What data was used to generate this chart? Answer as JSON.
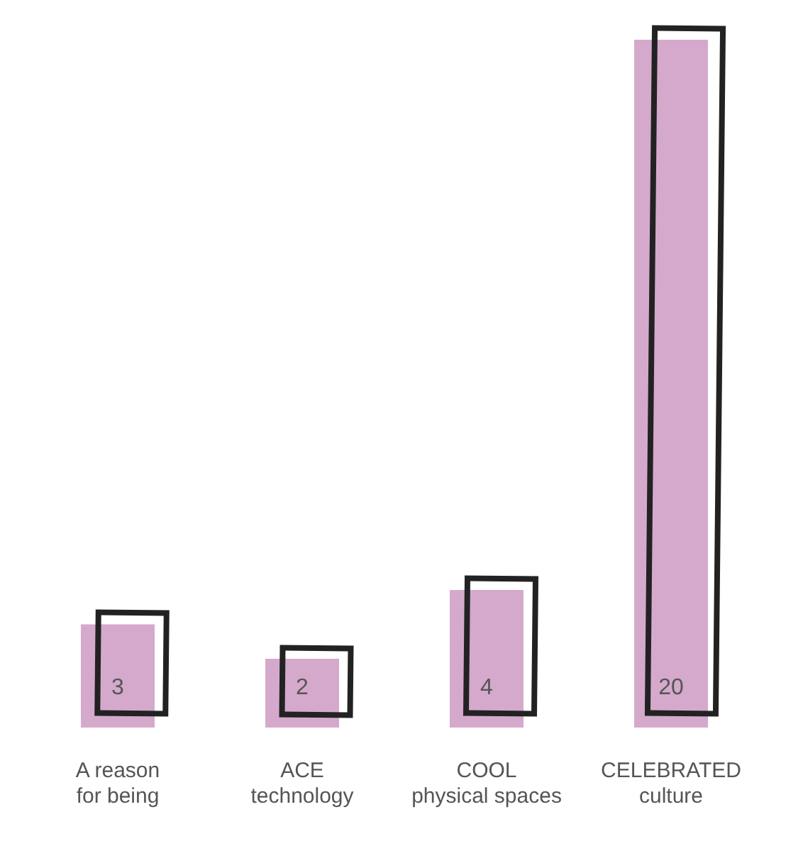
{
  "chart_data": {
    "type": "bar",
    "categories": [
      "A reason\nfor being",
      "ACE\ntechnology",
      "COOL\nphysical spaces",
      "CELEBRATED\nculture"
    ],
    "values": [
      3,
      2,
      4,
      20
    ],
    "color": "#d5a9cc",
    "data_labels": true,
    "grid": false,
    "legend": false,
    "tick_labels": "x"
  }
}
